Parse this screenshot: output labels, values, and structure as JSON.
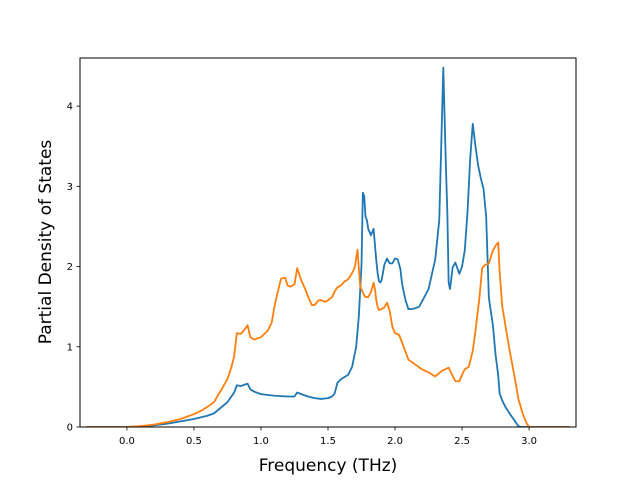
{
  "chart_data": {
    "type": "line",
    "xlabel": "Frequency (THz)",
    "ylabel": "Partial Density of States",
    "xlim": [
      -0.35,
      3.35
    ],
    "ylim": [
      0,
      4.6
    ],
    "x_ticks": [
      0.0,
      0.5,
      1.0,
      1.5,
      2.0,
      2.5,
      3.0
    ],
    "x_tick_labels": [
      "0.0",
      "0.5",
      "1.0",
      "1.5",
      "2.0",
      "2.5",
      "3.0"
    ],
    "y_ticks": [
      0,
      1,
      2,
      3,
      4
    ],
    "y_tick_labels": [
      "0",
      "1",
      "2",
      "3",
      "4"
    ],
    "grid": false,
    "series": [
      {
        "color": "#1f77b4",
        "x": [
          -0.3,
          0.0,
          0.2,
          0.3,
          0.4,
          0.5,
          0.6,
          0.65,
          0.7,
          0.75,
          0.8,
          0.82,
          0.85,
          0.88,
          0.9,
          0.92,
          0.95,
          1.0,
          1.1,
          1.2,
          1.25,
          1.27,
          1.3,
          1.35,
          1.4,
          1.45,
          1.5,
          1.53,
          1.55,
          1.57,
          1.6,
          1.65,
          1.68,
          1.71,
          1.73,
          1.75,
          1.76,
          1.77,
          1.78,
          1.79,
          1.8,
          1.82,
          1.84,
          1.86,
          1.87,
          1.88,
          1.89,
          1.9,
          1.92,
          1.94,
          1.96,
          1.98,
          2.0,
          2.02,
          2.04,
          2.05,
          2.06,
          2.08,
          2.1,
          2.12,
          2.15,
          2.18,
          2.2,
          2.25,
          2.3,
          2.33,
          2.36,
          2.38,
          2.39,
          2.4,
          2.41,
          2.43,
          2.45,
          2.48,
          2.5,
          2.52,
          2.54,
          2.56,
          2.58,
          2.6,
          2.62,
          2.64,
          2.66,
          2.68,
          2.7,
          2.73,
          2.75,
          2.77,
          2.78,
          2.8,
          2.82,
          2.85,
          2.9,
          2.92,
          2.94,
          2.96,
          2.98,
          3.0,
          3.1,
          3.3
        ],
        "y": [
          0.0,
          0.0,
          0.02,
          0.04,
          0.07,
          0.1,
          0.14,
          0.17,
          0.24,
          0.31,
          0.43,
          0.52,
          0.51,
          0.53,
          0.54,
          0.47,
          0.44,
          0.41,
          0.39,
          0.38,
          0.38,
          0.43,
          0.41,
          0.38,
          0.36,
          0.35,
          0.36,
          0.38,
          0.42,
          0.55,
          0.6,
          0.65,
          0.75,
          1.0,
          1.38,
          2.02,
          2.92,
          2.88,
          2.62,
          2.58,
          2.47,
          2.39,
          2.47,
          2.08,
          1.92,
          1.82,
          1.8,
          1.83,
          2.02,
          2.1,
          2.04,
          2.04,
          2.1,
          2.09,
          1.97,
          1.82,
          1.72,
          1.57,
          1.47,
          1.47,
          1.48,
          1.5,
          1.56,
          1.72,
          2.09,
          2.58,
          4.48,
          3.22,
          2.69,
          1.8,
          1.72,
          1.99,
          2.05,
          1.91,
          2.0,
          2.2,
          2.66,
          3.33,
          3.78,
          3.5,
          3.26,
          3.1,
          2.97,
          2.62,
          1.61,
          1.27,
          0.9,
          0.64,
          0.42,
          0.33,
          0.26,
          0.18,
          0.06,
          0.01,
          0.0,
          0.0,
          0.0,
          0.0,
          0.0,
          0.0
        ]
      },
      {
        "color": "#ff7f0e",
        "x": [
          -0.3,
          0.0,
          0.1,
          0.2,
          0.3,
          0.4,
          0.5,
          0.55,
          0.6,
          0.65,
          0.68,
          0.7,
          0.75,
          0.78,
          0.8,
          0.82,
          0.85,
          0.88,
          0.9,
          0.92,
          0.95,
          1.0,
          1.05,
          1.08,
          1.1,
          1.12,
          1.15,
          1.18,
          1.2,
          1.22,
          1.25,
          1.27,
          1.3,
          1.33,
          1.35,
          1.38,
          1.4,
          1.43,
          1.45,
          1.48,
          1.5,
          1.53,
          1.55,
          1.57,
          1.6,
          1.62,
          1.65,
          1.68,
          1.7,
          1.72,
          1.74,
          1.76,
          1.77,
          1.78,
          1.8,
          1.82,
          1.84,
          1.85,
          1.86,
          1.87,
          1.88,
          1.9,
          1.92,
          1.94,
          1.96,
          1.98,
          2.0,
          2.03,
          2.06,
          2.1,
          2.15,
          2.2,
          2.25,
          2.3,
          2.35,
          2.4,
          2.42,
          2.45,
          2.48,
          2.5,
          2.52,
          2.55,
          2.58,
          2.6,
          2.63,
          2.65,
          2.67,
          2.7,
          2.73,
          2.75,
          2.77,
          2.78,
          2.8,
          2.85,
          2.9,
          2.92,
          2.95,
          2.98,
          3.0,
          3.1,
          3.3
        ],
        "y": [
          0.0,
          0.0,
          0.01,
          0.03,
          0.06,
          0.1,
          0.16,
          0.2,
          0.25,
          0.31,
          0.4,
          0.45,
          0.6,
          0.75,
          0.88,
          1.17,
          1.16,
          1.22,
          1.27,
          1.12,
          1.09,
          1.12,
          1.2,
          1.3,
          1.5,
          1.65,
          1.85,
          1.86,
          1.76,
          1.75,
          1.78,
          1.98,
          1.83,
          1.72,
          1.63,
          1.52,
          1.52,
          1.58,
          1.58,
          1.56,
          1.58,
          1.62,
          1.69,
          1.74,
          1.77,
          1.81,
          1.84,
          1.92,
          1.99,
          2.21,
          1.75,
          1.68,
          1.64,
          1.62,
          1.62,
          1.68,
          1.8,
          1.72,
          1.58,
          1.5,
          1.46,
          1.47,
          1.49,
          1.55,
          1.45,
          1.25,
          1.17,
          1.15,
          1.02,
          0.84,
          0.78,
          0.72,
          0.68,
          0.63,
          0.7,
          0.74,
          0.67,
          0.57,
          0.57,
          0.65,
          0.72,
          0.75,
          0.95,
          1.2,
          1.62,
          1.98,
          2.02,
          2.04,
          2.2,
          2.26,
          2.3,
          1.94,
          1.5,
          1.0,
          0.55,
          0.35,
          0.18,
          0.05,
          0.0,
          0.0,
          0.0
        ]
      }
    ]
  }
}
